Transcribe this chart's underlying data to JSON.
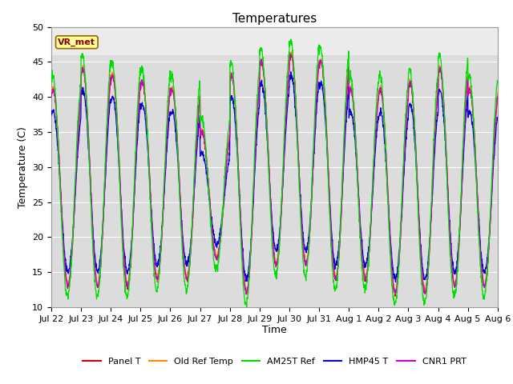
{
  "title": "Temperatures",
  "ylabel": "Temperature (C)",
  "xlabel": "Time",
  "ylim": [
    10,
    50
  ],
  "series_colors": {
    "Panel T": "#cc0000",
    "Old Ref Temp": "#ff8800",
    "AM25T Ref": "#00dd00",
    "HMP45 T": "#0000dd",
    "CNR1 PRT": "#cc00cc"
  },
  "series_order": [
    "Panel T",
    "Old Ref Temp",
    "AM25T Ref",
    "HMP45 T",
    "CNR1 PRT"
  ],
  "annotation_text": "VR_met",
  "annotation_bg": "#ffff99",
  "annotation_border": "#996600",
  "plot_bg_main": "#dcdcdc",
  "plot_bg_top": "#ebebeb",
  "n_days": 15,
  "tick_labels": [
    "Jul 22",
    "Jul 23",
    "Jul 24",
    "Jul 25",
    "Jul 26",
    "Jul 27",
    "Jul 28",
    "Jul 29",
    "Jul 30",
    "Jul 31",
    "Aug 1",
    "Aug 2",
    "Aug 3",
    "Aug 4",
    "Aug 5",
    "Aug 6"
  ],
  "title_fontsize": 11,
  "axis_fontsize": 9,
  "tick_fontsize": 8,
  "legend_fontsize": 8,
  "day_mins": [
    13,
    13,
    13,
    14,
    14,
    17,
    12,
    16,
    16,
    14,
    14,
    12,
    12,
    13,
    13
  ],
  "day_maxes": [
    41,
    44,
    43,
    42,
    41,
    35,
    43,
    45,
    46,
    45,
    41,
    41,
    42,
    44,
    41
  ]
}
